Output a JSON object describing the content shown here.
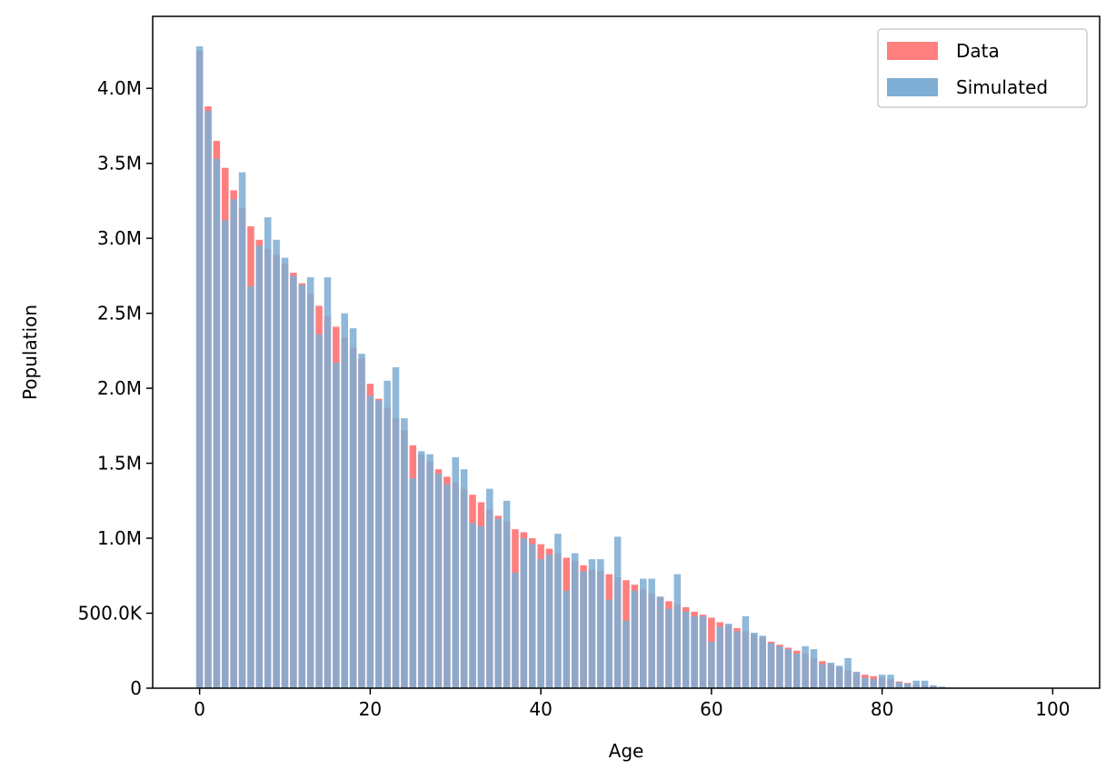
{
  "chart_data": {
    "type": "bar",
    "title": "",
    "xlabel": "Age",
    "ylabel": "Population",
    "xlim": [
      -5.5,
      105.5
    ],
    "ylim": [
      0,
      4480000
    ],
    "x_ticks": [
      0,
      20,
      40,
      60,
      80,
      100
    ],
    "x_tick_labels": [
      "0",
      "20",
      "40",
      "60",
      "80",
      "100"
    ],
    "y_ticks": [
      0,
      500000,
      1000000,
      1500000,
      2000000,
      2500000,
      3000000,
      3500000,
      4000000
    ],
    "y_tick_labels": [
      "0",
      "500.0K",
      "1.0M",
      "1.5M",
      "2.0M",
      "2.5M",
      "3.0M",
      "3.5M",
      "4.0M"
    ],
    "grid": false,
    "legend_position": "top-right",
    "x": [
      0,
      1,
      2,
      3,
      4,
      5,
      6,
      7,
      8,
      9,
      10,
      11,
      12,
      13,
      14,
      15,
      16,
      17,
      18,
      19,
      20,
      21,
      22,
      23,
      24,
      25,
      26,
      27,
      28,
      29,
      30,
      31,
      32,
      33,
      34,
      35,
      36,
      37,
      38,
      39,
      40,
      41,
      42,
      43,
      44,
      45,
      46,
      47,
      48,
      49,
      50,
      51,
      52,
      53,
      54,
      55,
      56,
      57,
      58,
      59,
      60,
      61,
      62,
      63,
      64,
      65,
      66,
      67,
      68,
      69,
      70,
      71,
      72,
      73,
      74,
      75,
      76,
      77,
      78,
      79,
      80,
      81,
      82,
      83,
      84,
      85,
      86,
      87,
      88,
      89,
      90,
      91,
      92,
      93,
      94,
      95,
      96,
      97,
      98,
      99,
      100
    ],
    "series": [
      {
        "name": "Data",
        "color": "#ff7f7f",
        "values": [
          4250000,
          3880000,
          3650000,
          3470000,
          3320000,
          3200000,
          3080000,
          2990000,
          2930000,
          2890000,
          2830000,
          2770000,
          2700000,
          2630000,
          2550000,
          2480000,
          2410000,
          2340000,
          2270000,
          2200000,
          2030000,
          1930000,
          1870000,
          1800000,
          1720000,
          1620000,
          1560000,
          1510000,
          1460000,
          1410000,
          1370000,
          1330000,
          1290000,
          1240000,
          1190000,
          1150000,
          1110000,
          1060000,
          1040000,
          1000000,
          960000,
          930000,
          900000,
          870000,
          850000,
          820000,
          790000,
          780000,
          760000,
          740000,
          720000,
          690000,
          660000,
          630000,
          610000,
          580000,
          560000,
          540000,
          510000,
          490000,
          470000,
          440000,
          420000,
          400000,
          380000,
          360000,
          340000,
          310000,
          290000,
          270000,
          250000,
          230000,
          200000,
          180000,
          160000,
          140000,
          120000,
          100000,
          90000,
          80000,
          70000,
          60000,
          45000,
          35000,
          25000,
          20000,
          12000,
          8000,
          5000,
          3000,
          2000,
          1000,
          0,
          0,
          0,
          0,
          0,
          0,
          0,
          0,
          0
        ]
      },
      {
        "name": "Simulated",
        "color": "#7faed4",
        "values": [
          4280000,
          3850000,
          3530000,
          3120000,
          3260000,
          3440000,
          2680000,
          2950000,
          3140000,
          2990000,
          2870000,
          2750000,
          2690000,
          2740000,
          2360000,
          2740000,
          2170000,
          2500000,
          2400000,
          2230000,
          1950000,
          1920000,
          2050000,
          2140000,
          1800000,
          1400000,
          1580000,
          1560000,
          1430000,
          1360000,
          1540000,
          1460000,
          1100000,
          1080000,
          1330000,
          1130000,
          1250000,
          770000,
          1000000,
          960000,
          860000,
          890000,
          1030000,
          650000,
          900000,
          780000,
          860000,
          860000,
          590000,
          1010000,
          450000,
          650000,
          730000,
          730000,
          610000,
          530000,
          760000,
          510000,
          480000,
          480000,
          310000,
          410000,
          430000,
          380000,
          480000,
          370000,
          350000,
          300000,
          280000,
          260000,
          230000,
          280000,
          260000,
          160000,
          170000,
          150000,
          200000,
          110000,
          70000,
          60000,
          90000,
          90000,
          40000,
          30000,
          50000,
          50000,
          20000,
          10000,
          3000,
          2000,
          1000,
          500,
          0,
          0,
          0,
          0,
          0,
          0,
          0,
          0,
          0
        ]
      }
    ]
  }
}
